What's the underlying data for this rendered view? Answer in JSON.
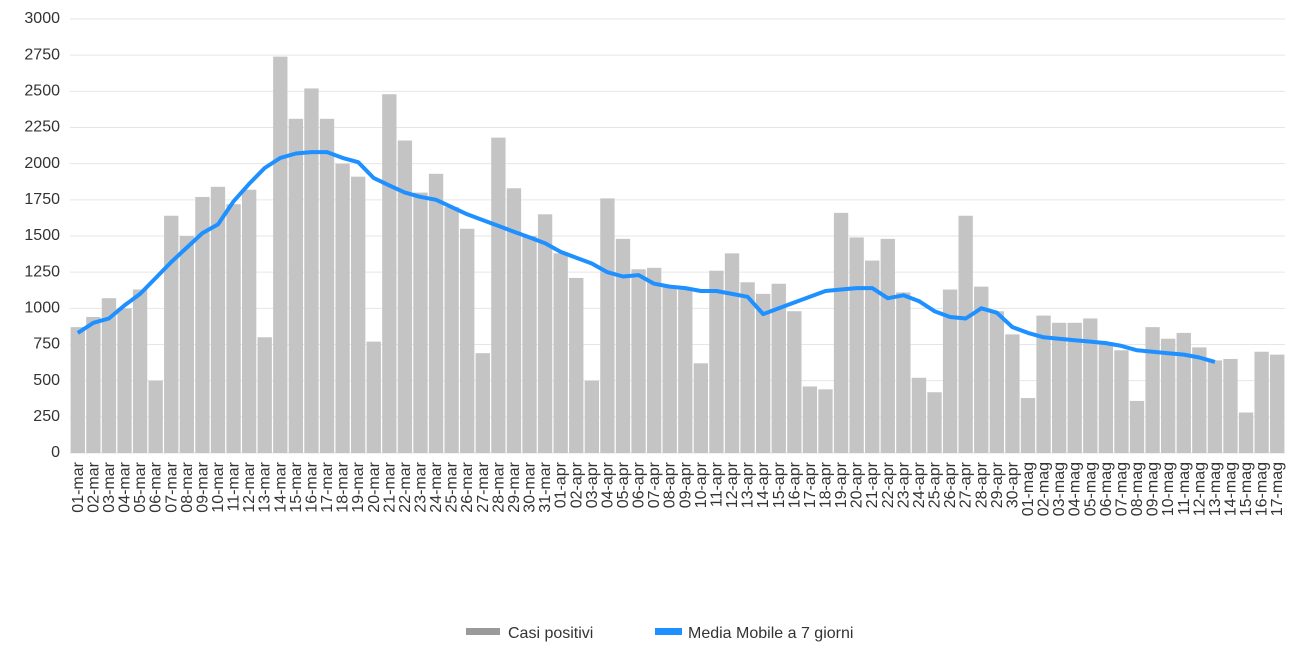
{
  "chart_data": {
    "type": "bar",
    "categories": [
      "01-mar",
      "02-mar",
      "03-mar",
      "04-mar",
      "05-mar",
      "06-mar",
      "07-mar",
      "08-mar",
      "09-mar",
      "10-mar",
      "11-mar",
      "12-mar",
      "13-mar",
      "14-mar",
      "15-mar",
      "16-mar",
      "17-mar",
      "18-mar",
      "19-mar",
      "20-mar",
      "21-mar",
      "22-mar",
      "23-mar",
      "24-mar",
      "25-mar",
      "26-mar",
      "27-mar",
      "28-mar",
      "29-mar",
      "30-mar",
      "31-mar",
      "01-apr",
      "02-apr",
      "03-apr",
      "04-apr",
      "05-apr",
      "06-apr",
      "07-apr",
      "08-apr",
      "09-apr",
      "10-apr",
      "11-apr",
      "12-apr",
      "13-apr",
      "14-apr",
      "15-apr",
      "16-apr",
      "17-apr",
      "18-apr",
      "19-apr",
      "20-apr",
      "21-apr",
      "22-apr",
      "23-apr",
      "24-apr",
      "25-apr",
      "26-apr",
      "27-apr",
      "28-apr",
      "29-apr",
      "30-apr",
      "01-mag",
      "02-mag",
      "03-mag",
      "04-mag",
      "05-mag",
      "06-mag",
      "07-mag",
      "08-mag",
      "09-mag",
      "10-mag",
      "11-mag",
      "12-mag",
      "13-mag",
      "14-mag",
      "15-mag",
      "16-mag",
      "17-mag"
    ],
    "series": [
      {
        "name": "Casi positivi",
        "type": "bar",
        "color": "#c4c4c4",
        "legend_color": "#9a9a9a",
        "values": [
          870,
          940,
          1070,
          1000,
          1130,
          500,
          1640,
          1500,
          1770,
          1840,
          1720,
          1820,
          800,
          2740,
          2310,
          2520,
          2310,
          2000,
          1910,
          770,
          2480,
          2160,
          1800,
          1930,
          1700,
          1550,
          690,
          2180,
          1830,
          1500,
          1650,
          1380,
          1210,
          500,
          1760,
          1480,
          1270,
          1280,
          1150,
          1140,
          620,
          1260,
          1380,
          1180,
          1100,
          1170,
          980,
          460,
          440,
          1660,
          1490,
          1330,
          1480,
          1110,
          520,
          420,
          1130,
          1640,
          1150,
          980,
          820,
          380,
          950,
          900,
          900,
          930,
          760,
          710,
          360,
          870,
          790,
          830,
          730,
          640,
          650,
          280,
          700,
          680
        ]
      },
      {
        "name": "Media Mobile a 7 giorni",
        "type": "line",
        "color": "#1e90ff",
        "legend_color": "#1e90ff",
        "values": [
          830,
          900,
          930,
          1020,
          1100,
          1210,
          1320,
          1420,
          1520,
          1580,
          1740,
          1860,
          1970,
          2040,
          2070,
          2080,
          2080,
          2040,
          2010,
          1900,
          1850,
          1800,
          1770,
          1750,
          1700,
          1650,
          1610,
          1570,
          1530,
          1490,
          1450,
          1390,
          1350,
          1310,
          1250,
          1220,
          1230,
          1170,
          1150,
          1140,
          1120,
          1120,
          1100,
          1080,
          960,
          1000,
          1040,
          1080,
          1120,
          1130,
          1140,
          1140,
          1070,
          1090,
          1050,
          980,
          940,
          930,
          1000,
          970,
          870,
          830,
          800,
          790,
          780,
          770,
          760,
          740,
          710,
          700,
          690,
          680,
          660,
          630,
          null,
          null,
          null,
          null
        ]
      }
    ],
    "ylim": [
      0,
      3000
    ],
    "yticks": [
      0,
      250,
      500,
      750,
      1000,
      1250,
      1500,
      1750,
      2000,
      2250,
      2500,
      2750,
      3000
    ],
    "grid": true,
    "legend": "bottom"
  }
}
